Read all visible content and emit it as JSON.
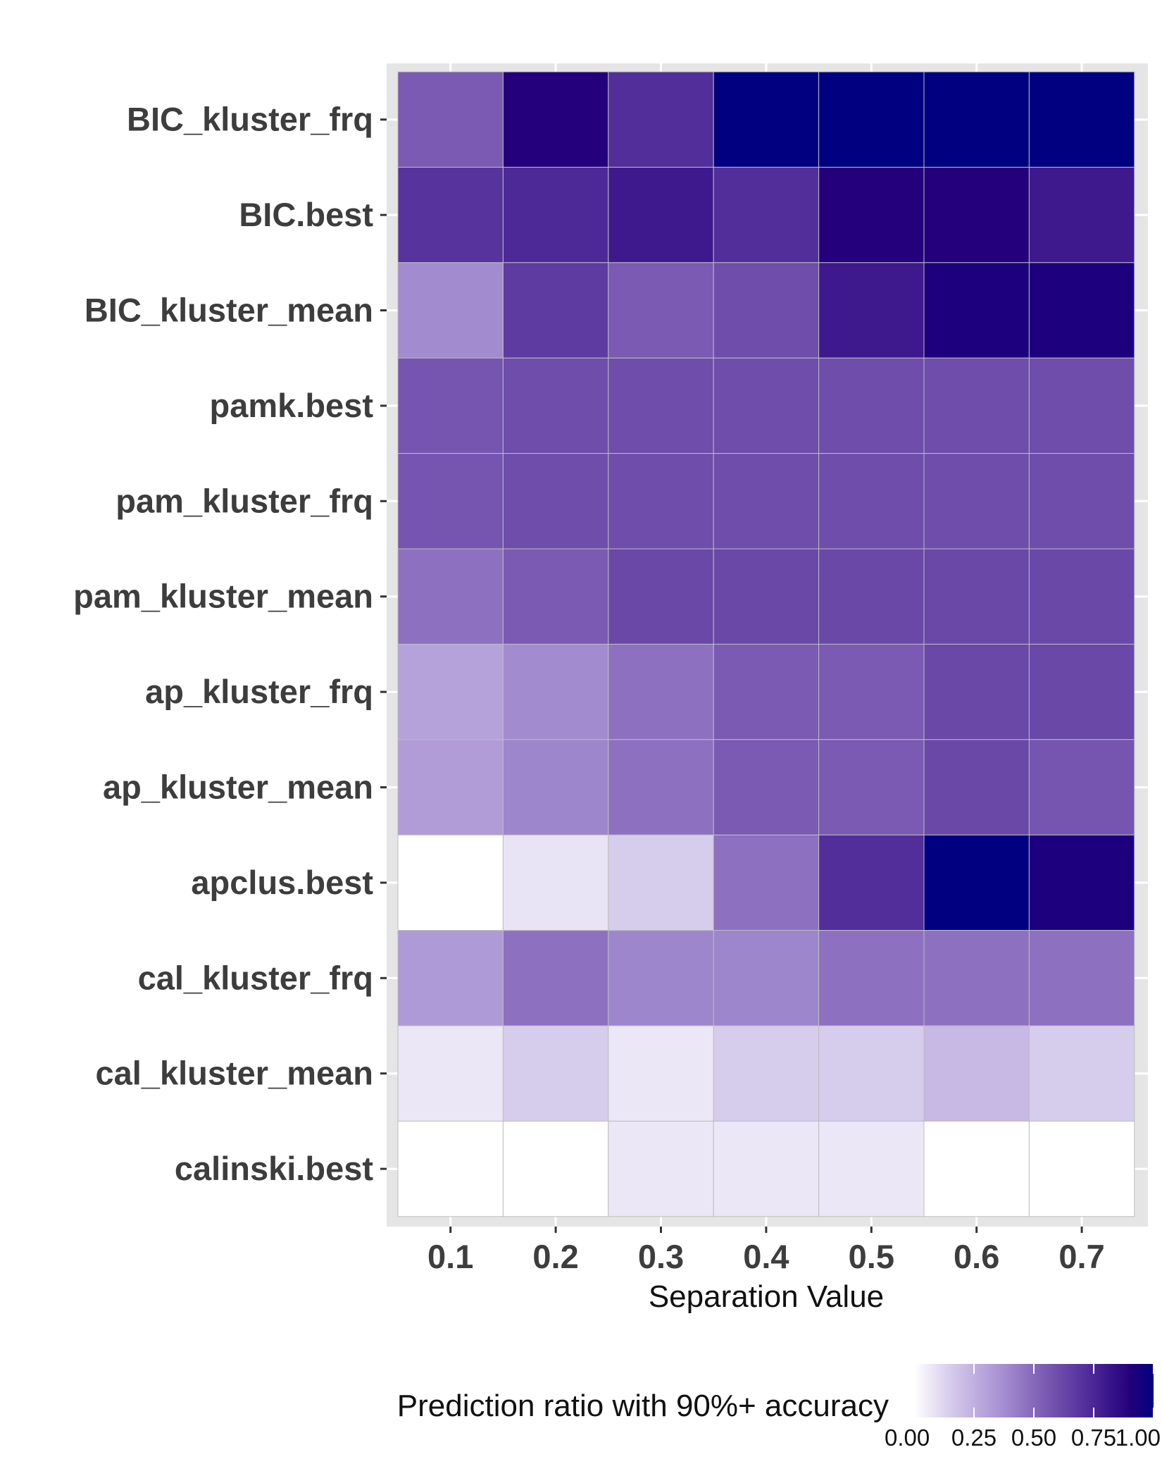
{
  "chart_data": {
    "type": "heatmap",
    "title": "",
    "xlabel": "Separation Value",
    "ylabel": "",
    "x": [
      "0.1",
      "0.2",
      "0.3",
      "0.4",
      "0.5",
      "0.6",
      "0.7"
    ],
    "y": [
      "BIC_kluster_frq",
      "BIC.best",
      "BIC_kluster_mean",
      "pamk.best",
      "pam_kluster_frq",
      "pam_kluster_mean",
      "ap_kluster_frq",
      "ap_kluster_mean",
      "apclus.best",
      "cal_kluster_frq",
      "cal_kluster_mean",
      "calinski.best"
    ],
    "values": [
      [
        0.55,
        0.9,
        0.72,
        1.0,
        1.0,
        1.0,
        1.0
      ],
      [
        0.7,
        0.74,
        0.8,
        0.72,
        0.9,
        0.9,
        0.8
      ],
      [
        0.38,
        0.67,
        0.55,
        0.6,
        0.8,
        0.92,
        0.92
      ],
      [
        0.57,
        0.6,
        0.6,
        0.6,
        0.6,
        0.6,
        0.6
      ],
      [
        0.57,
        0.6,
        0.6,
        0.6,
        0.6,
        0.6,
        0.6
      ],
      [
        0.47,
        0.55,
        0.62,
        0.62,
        0.62,
        0.62,
        0.62
      ],
      [
        0.3,
        0.38,
        0.47,
        0.55,
        0.55,
        0.62,
        0.62
      ],
      [
        0.32,
        0.4,
        0.47,
        0.55,
        0.55,
        0.62,
        0.57
      ],
      [
        0.0,
        0.08,
        0.15,
        0.47,
        0.72,
        1.0,
        0.92
      ],
      [
        0.33,
        0.47,
        0.4,
        0.4,
        0.47,
        0.47,
        0.47
      ],
      [
        0.07,
        0.15,
        0.07,
        0.15,
        0.15,
        0.22,
        0.15
      ],
      [
        0.0,
        0.0,
        0.07,
        0.07,
        0.07,
        0.0,
        0.0
      ]
    ],
    "value_range": [
      0,
      1
    ],
    "grid": true,
    "legend": {
      "title": "Prediction ratio with 90%+ accuracy",
      "placement": "bottom",
      "ticks": [
        "0.00",
        "0.25",
        "0.50",
        "0.75",
        "1.00"
      ],
      "tick_values": [
        0,
        0.25,
        0.5,
        0.75,
        1.0
      ]
    },
    "colors": {
      "low": "#ffffff",
      "high": "#000080",
      "panel_background": "#e5e5e5",
      "grid_line": "#ffffff",
      "tick_text": "#3d3d3d"
    }
  }
}
